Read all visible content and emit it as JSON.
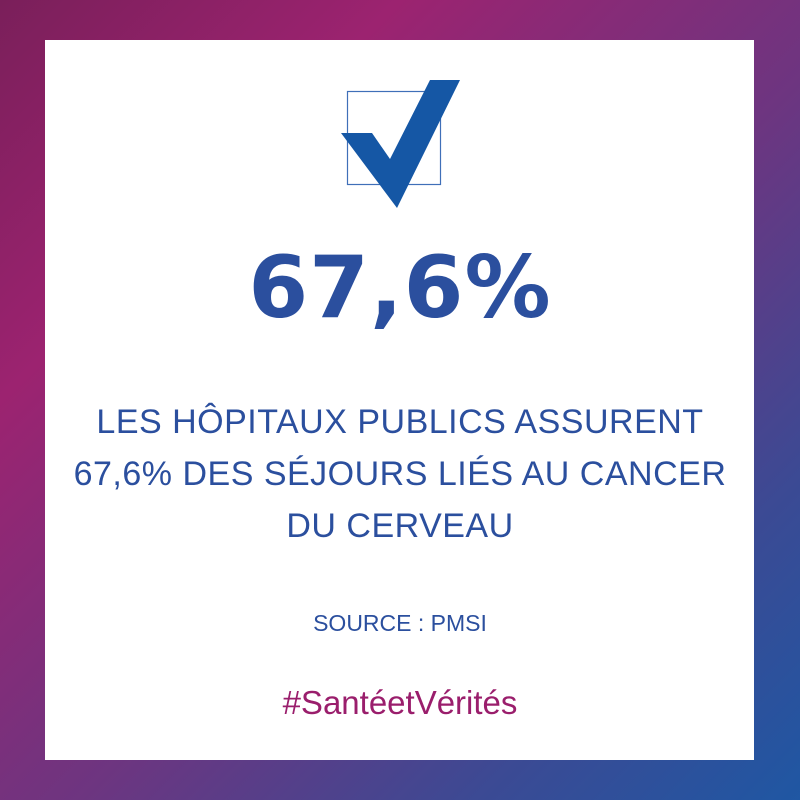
{
  "headline": "67,6%",
  "statement": {
    "lines": [
      "LES HÔPITAUX PUBLICS ASSURENT",
      "67,6% DES SÉJOURS LIÉS AU CANCER",
      "DU CERVEAU"
    ]
  },
  "source": "SOURCE : PMSI",
  "hashtag": "#SantéetVérités",
  "icon": "checkbox-checked-icon",
  "colors": {
    "text": "#2b4f9e",
    "check": "#1557a5",
    "hashtag": "#9a1e6c",
    "background_gradient": [
      "#7a1f5a",
      "#9c2370",
      "#3b4a94",
      "#1f57a3"
    ]
  }
}
